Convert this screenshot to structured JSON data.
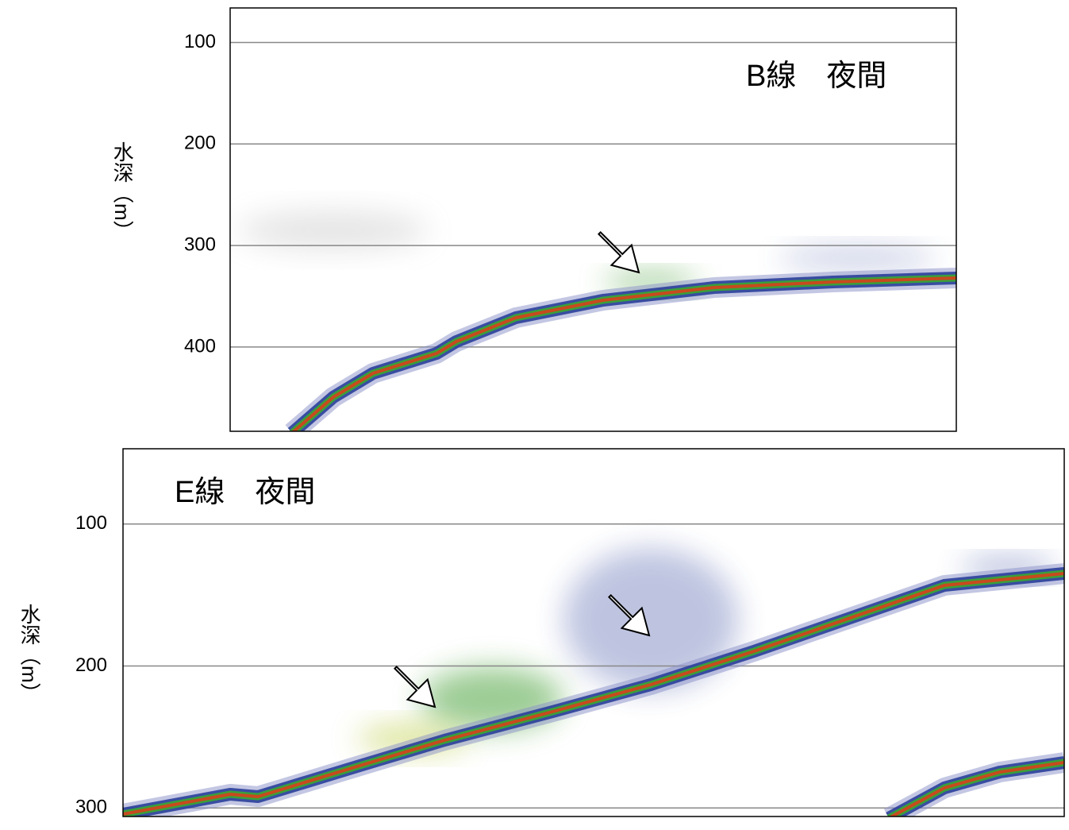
{
  "chart_data": [
    {
      "type": "echogram",
      "title": "B線　夜間",
      "y_label": "水深（m）",
      "ylim": [
        66,
        483
      ],
      "yticks": [
        100,
        200,
        300,
        400
      ],
      "invert_y": true,
      "grid": true
    },
    {
      "type": "echogram",
      "title": "E線　夜間",
      "y_label": "水深（m）",
      "ylim": [
        47,
        306
      ],
      "yticks": [
        100,
        200,
        300
      ],
      "invert_y": true,
      "grid": true
    }
  ]
}
